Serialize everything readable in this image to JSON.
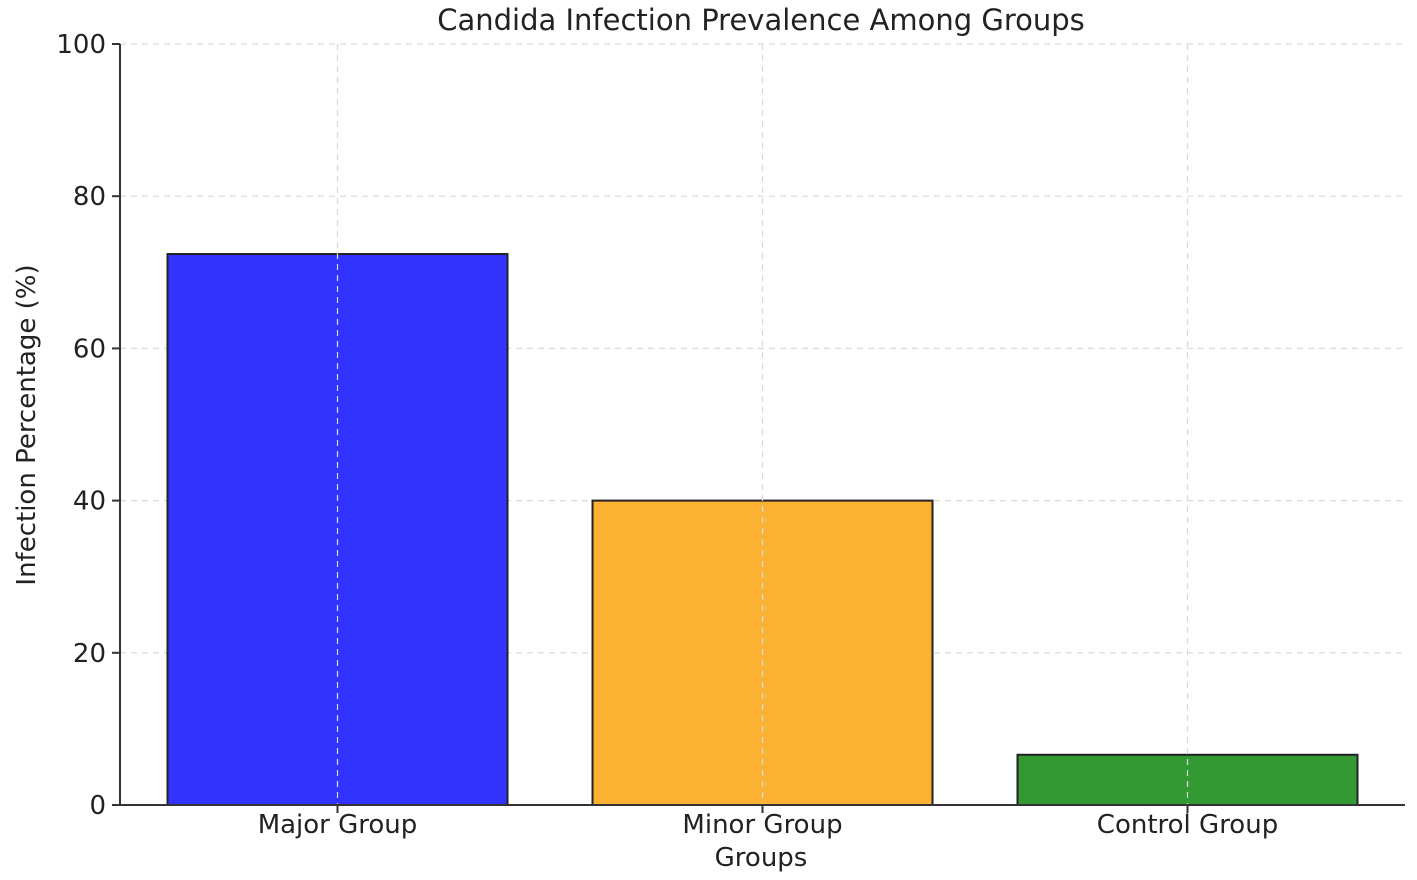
{
  "chart_data": {
    "type": "bar",
    "title": "Candida Infection Prevalence Among Groups",
    "xlabel": "Groups",
    "ylabel": "Infection Percentage (%)",
    "categories": [
      "Major Group",
      "Minor Group",
      "Control Group"
    ],
    "values": [
      72.4,
      40.0,
      6.6
    ],
    "colors": [
      "#3333ff",
      "#fbb232",
      "#339933"
    ],
    "ylim": [
      0,
      100
    ],
    "yticks": [
      0,
      20,
      40,
      60,
      80,
      100
    ],
    "grid": true,
    "legend": "none"
  }
}
